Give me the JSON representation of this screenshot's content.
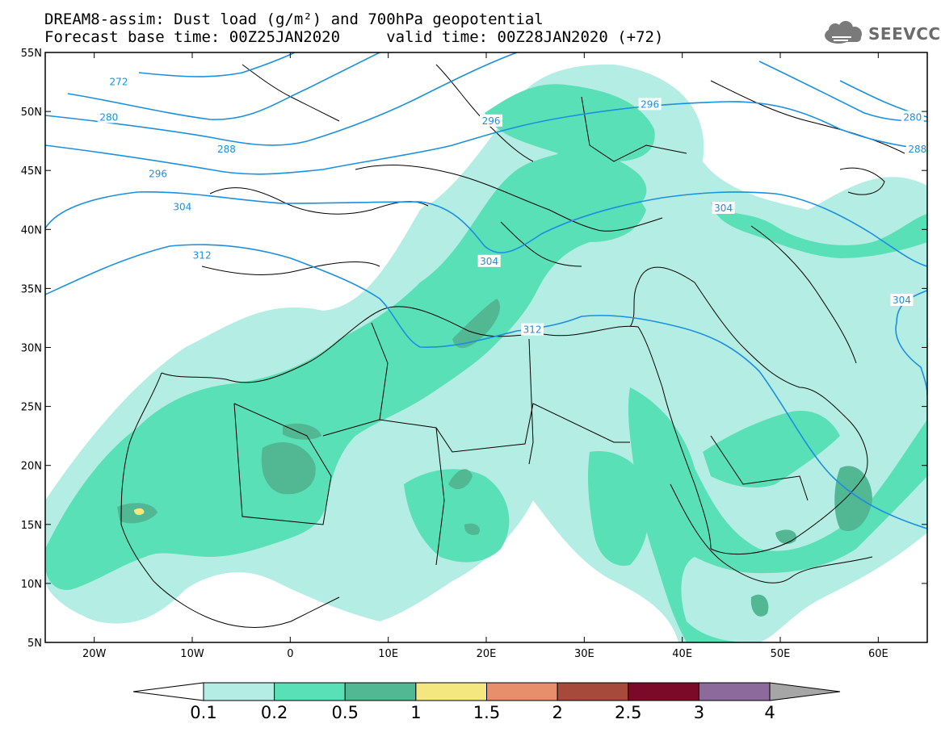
{
  "title": {
    "line1": "DREAM8-assim: Dust load (g/m²) and 700hPa geopotential",
    "line2": "Forecast base time: 00Z25JAN2020     valid time: 00Z28JAN2020 (+72)"
  },
  "logo": {
    "text": "SEEVCCC",
    "icon": "cloud-logo-icon"
  },
  "map": {
    "lat_range": [
      5,
      55
    ],
    "lon_range": [
      -25,
      65
    ],
    "lat_ticks": [
      {
        "value": 55,
        "label": "55N"
      },
      {
        "value": 50,
        "label": "50N"
      },
      {
        "value": 45,
        "label": "45N"
      },
      {
        "value": 40,
        "label": "40N"
      },
      {
        "value": 35,
        "label": "35N"
      },
      {
        "value": 30,
        "label": "30N"
      },
      {
        "value": 25,
        "label": "25N"
      },
      {
        "value": 20,
        "label": "20N"
      },
      {
        "value": 15,
        "label": "15N"
      },
      {
        "value": 10,
        "label": "10N"
      },
      {
        "value": 5,
        "label": "5N"
      }
    ],
    "lon_ticks": [
      {
        "value": -20,
        "label": "20W"
      },
      {
        "value": -10,
        "label": "10W"
      },
      {
        "value": 0,
        "label": "0"
      },
      {
        "value": 10,
        "label": "10E"
      },
      {
        "value": 20,
        "label": "20E"
      },
      {
        "value": 30,
        "label": "30E"
      },
      {
        "value": 40,
        "label": "40E"
      },
      {
        "value": 50,
        "label": "50E"
      },
      {
        "value": 60,
        "label": "60E"
      }
    ],
    "contour_color": "#1c8fe0",
    "contours": [
      {
        "value": "272",
        "labels": [
          {
            "lon": -17.5,
            "lat": 52.5
          }
        ]
      },
      {
        "value": "280",
        "labels": [
          {
            "lon": -18.5,
            "lat": 49.5
          },
          {
            "lon": 63.5,
            "lat": 49.5
          }
        ]
      },
      {
        "value": "288",
        "labels": [
          {
            "lon": -6.5,
            "lat": 46.8
          },
          {
            "lon": 64,
            "lat": 46.8
          }
        ]
      },
      {
        "value": "296",
        "labels": [
          {
            "lon": -13.5,
            "lat": 44.7
          },
          {
            "lon": 20.5,
            "lat": 49.2
          },
          {
            "lon": 36.7,
            "lat": 50.6
          }
        ]
      },
      {
        "value": "304",
        "labels": [
          {
            "lon": -11,
            "lat": 41.9
          },
          {
            "lon": 20.3,
            "lat": 37.3
          },
          {
            "lon": 44.2,
            "lat": 41.8
          },
          {
            "lon": 62.4,
            "lat": 34
          }
        ]
      },
      {
        "value": "312",
        "labels": [
          {
            "lon": -9,
            "lat": 37.8
          },
          {
            "lon": 24.7,
            "lat": 31.5
          }
        ]
      }
    ]
  },
  "colorbar": {
    "labels": [
      "0.1",
      "0.2",
      "0.5",
      "1",
      "1.5",
      "2",
      "2.5",
      "3",
      "4"
    ],
    "colors": [
      "#ffffff",
      "#b4ede3",
      "#5ae0b6",
      "#52b894",
      "#f5e77f",
      "#e68f6a",
      "#a64a3c",
      "#7a0a27",
      "#8c6a9c",
      "#a6a6a6"
    ]
  }
}
